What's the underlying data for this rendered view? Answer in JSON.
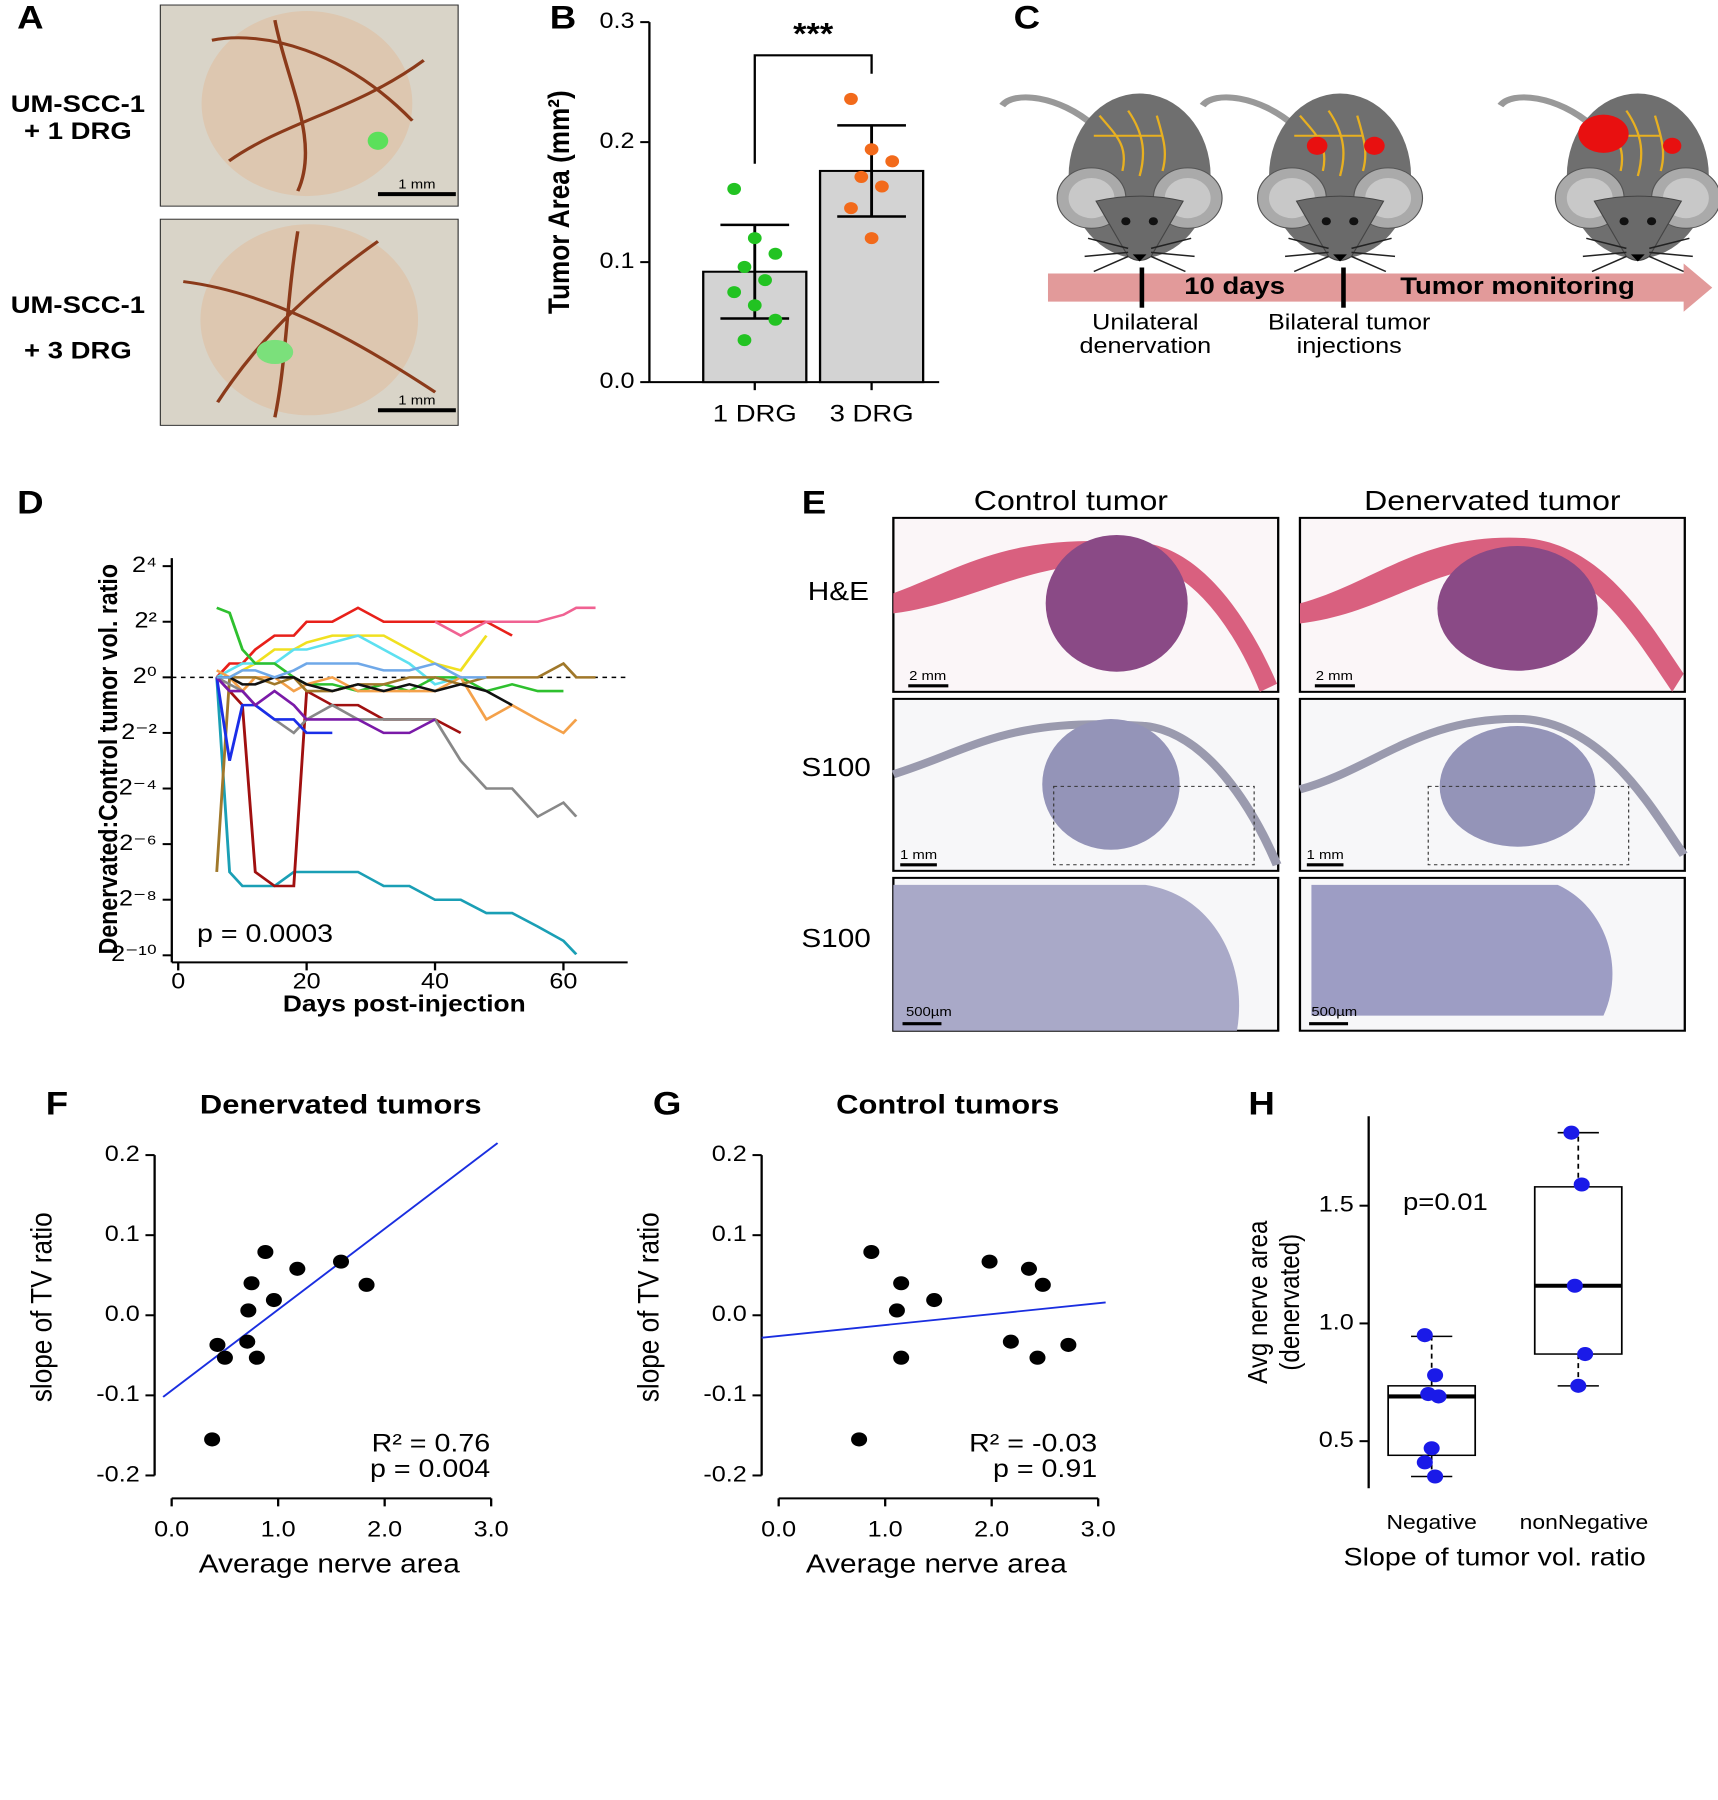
{
  "panel_a": {
    "letter": "A",
    "rows": [
      [
        "UM-SCC-1",
        "+ 1 DRG"
      ],
      [
        "UM-SCC-1",
        "+ 3 DRG"
      ]
    ],
    "scale_bars": [
      "1 mm",
      "1 mm"
    ]
  },
  "panel_c": {
    "letter": "C",
    "timeline": [
      "10 days",
      "Tumor monitoring"
    ],
    "events": [
      [
        "Unilateral",
        "denervation"
      ],
      [
        "Bilateral tumor",
        "injections"
      ]
    ]
  },
  "panel_e": {
    "letter": "E",
    "columns": [
      "Control tumor",
      "Denervated tumor"
    ],
    "rows": [
      "H&E",
      "S100",
      "S100"
    ],
    "scale_bars": [
      [
        "2 mm",
        "2 mm"
      ],
      [
        "1 mm",
        "1 mm"
      ],
      [
        "500µm",
        "500µm"
      ]
    ]
  },
  "chart_data": [
    {
      "type": "bar",
      "panel": "B",
      "ylabel": "Tumor Area (mm²)",
      "categories": [
        "1 DRG",
        "3 DRG"
      ],
      "values": [
        0.092,
        0.176
      ],
      "errors": [
        0.039,
        0.038
      ],
      "color": "#d3d3d3",
      "points": [
        [
          0.161,
          0.12,
          0.107,
          0.096,
          0.085,
          0.075,
          0.064,
          0.052,
          0.035
        ],
        [
          0.236,
          0.194,
          0.184,
          0.171,
          0.163,
          0.145,
          0.12
        ]
      ],
      "point_colors": [
        "#22c322",
        "#f26a1b"
      ],
      "annotation": "***",
      "ylim": [
        0,
        0.3
      ],
      "yticks": [
        {
          "value": 0,
          "label": "0.0"
        },
        0.1,
        0.2,
        0.3
      ]
    },
    {
      "type": "line",
      "panel": "D",
      "xlabel": "Days post-injection",
      "ylabel": "Denervated:Control tumor vol. ratio",
      "annotation": "p = 0.0003",
      "log_base": 2,
      "reference_line": 1,
      "x": [
        6,
        8,
        10,
        12,
        15,
        18,
        20,
        24,
        28,
        32,
        36,
        40,
        44,
        48,
        52,
        56,
        60,
        62,
        65
      ],
      "series": [
        {
          "color": "#1a9fb5",
          "values": [
            1,
            0.0078,
            0.0055,
            0.0055,
            0.0055,
            0.0078,
            0.0078,
            0.0078,
            0.0078,
            0.0055,
            0.0055,
            0.0039,
            0.0039,
            0.0028,
            0.0028,
            0.002,
            0.0014,
            0.001,
            null
          ]
        },
        {
          "color": "#a01010",
          "values": [
            1,
            0.71,
            0.5,
            0.0078,
            0.0055,
            0.0055,
            0.71,
            0.5,
            0.5,
            0.35,
            0.35,
            0.35,
            0.25,
            null,
            null,
            null,
            null,
            null,
            null
          ]
        },
        {
          "color": "#e8201a",
          "values": [
            1,
            1.41,
            1.41,
            2,
            2.83,
            2.83,
            4,
            4,
            5.66,
            4,
            4,
            4,
            4,
            4,
            2.83,
            null,
            null,
            null,
            null
          ]
        },
        {
          "color": "#f06292",
          "values": [
            null,
            null,
            null,
            null,
            null,
            null,
            null,
            null,
            null,
            null,
            null,
            4,
            2.83,
            4,
            4,
            4,
            4.76,
            5.66,
            5.66
          ]
        },
        {
          "color": "#f0e020",
          "values": [
            1,
            1,
            1.19,
            1.41,
            2,
            2,
            2.38,
            2.83,
            2.83,
            2.83,
            2,
            1.41,
            1.19,
            2.83,
            null,
            null,
            null,
            null,
            null
          ]
        },
        {
          "color": "#5de0f0",
          "values": [
            1,
            1.19,
            1.41,
            1.41,
            1.41,
            2,
            2,
            2.38,
            2.83,
            2,
            1.41,
            0.84,
            1,
            null,
            null,
            null,
            null,
            null,
            null
          ]
        },
        {
          "color": "#2ec02e",
          "values": [
            5.66,
            5,
            2,
            1.41,
            1.41,
            1,
            0.84,
            0.84,
            0.71,
            0.84,
            0.71,
            1,
            1,
            0.71,
            0.84,
            0.71,
            0.71,
            null,
            null
          ]
        },
        {
          "color": "#f4a14a",
          "values": [
            1.19,
            1,
            0.71,
            1,
            1,
            0.71,
            0.84,
            1,
            0.71,
            0.71,
            0.71,
            0.71,
            1,
            0.35,
            0.5,
            0.35,
            0.25,
            0.35,
            null
          ]
        },
        {
          "color": "#a0782a",
          "values": [
            0.0078,
            1,
            1,
            1,
            0.84,
            1,
            0.71,
            0.71,
            0.84,
            0.84,
            1,
            1,
            0.84,
            1,
            1,
            1,
            1.41,
            1,
            1
          ]
        },
        {
          "color": "#888888",
          "values": [
            1,
            0.84,
            0.71,
            0.5,
            0.35,
            0.25,
            0.35,
            0.5,
            0.35,
            0.35,
            0.35,
            0.35,
            0.125,
            0.0625,
            0.0625,
            0.031,
            0.044,
            0.031,
            null
          ]
        },
        {
          "color": "#1a2ee8",
          "values": [
            1,
            0.125,
            0.5,
            0.5,
            0.35,
            0.35,
            0.25,
            0.25,
            null,
            null,
            null,
            null,
            null,
            null,
            null,
            null,
            null,
            null,
            null
          ]
        },
        {
          "color": "#7a1aa8",
          "values": [
            1,
            0.71,
            0.71,
            0.5,
            0.71,
            0.5,
            0.35,
            0.35,
            0.35,
            0.25,
            0.25,
            0.35,
            null,
            null,
            null,
            null,
            null,
            null,
            null
          ]
        },
        {
          "color": "#111111",
          "values": [
            1,
            1,
            0.84,
            0.84,
            1,
            1,
            0.84,
            0.71,
            0.84,
            0.71,
            0.84,
            0.71,
            0.84,
            0.71,
            0.5,
            null,
            null,
            null,
            null
          ]
        },
        {
          "color": "#6fa8e8",
          "values": [
            1,
            1,
            1.19,
            1.19,
            1,
            1.19,
            1.41,
            1.41,
            1.41,
            1.19,
            1.19,
            1.41,
            1,
            1,
            null,
            null,
            null,
            null,
            null
          ]
        }
      ],
      "xlim": [
        -1,
        70
      ],
      "xticks": [
        0,
        20,
        40,
        60
      ],
      "ylim": [
        0.0009765625,
        16
      ],
      "yticks": [
        {
          "value": 16,
          "label": "2⁴"
        },
        {
          "value": 4,
          "label": "2²"
        },
        {
          "value": 1,
          "label": "2⁰"
        },
        {
          "value": 0.25,
          "label": "2⁻²"
        },
        {
          "value": 0.0625,
          "label": "2⁻⁴"
        },
        {
          "value": 0.015625,
          "label": "2⁻⁶"
        },
        {
          "value": 0.00390625,
          "label": "2⁻⁸"
        },
        {
          "value": 0.0009765625,
          "label": "2⁻¹⁰"
        }
      ]
    },
    {
      "type": "scatter",
      "panel": "F",
      "title": "Denervated tumors",
      "xlabel": "Average nerve area",
      "ylabel": "slope of TV ratio",
      "annotations": [
        "R² = 0.76",
        "p = 0.004"
      ],
      "color": "#000000",
      "x": [
        0.38,
        0.43,
        0.5,
        0.71,
        0.72,
        0.75,
        0.8,
        0.88,
        0.96,
        1.18,
        1.59,
        1.83
      ],
      "values": [
        -0.155,
        -0.037,
        -0.053,
        -0.033,
        0.006,
        0.04,
        -0.053,
        0.079,
        0.019,
        0.058,
        0.067,
        0.038
      ],
      "fit_line": {
        "color": "#1a2ee0",
        "x": [
          -0.08,
          3.06
        ],
        "y": [
          -0.102,
          0.215
        ]
      },
      "xlim": [
        -0.16,
        3.12
      ],
      "xticks": [
        {
          "value": 0,
          "label": "0.0"
        },
        {
          "value": 1,
          "label": "1.0"
        },
        {
          "value": 2,
          "label": "2.0"
        },
        {
          "value": 3,
          "label": "3.0"
        }
      ],
      "ylim": [
        -0.216,
        0.236
      ],
      "yticks": [
        -0.2,
        -0.1,
        {
          "value": 0,
          "label": "0.0"
        },
        0.1,
        0.2
      ]
    },
    {
      "type": "scatter",
      "panel": "G",
      "title": "Control tumors",
      "xlabel": "Average nerve area",
      "ylabel": "slope of TV ratio",
      "annotations": [
        "R² = -0.03",
        "p = 0.91"
      ],
      "color": "#000000",
      "x": [
        0.755,
        0.87,
        1.11,
        1.15,
        1.15,
        1.46,
        1.98,
        2.18,
        2.35,
        2.43,
        2.48,
        2.72
      ],
      "values": [
        -0.155,
        0.079,
        0.006,
        0.04,
        -0.053,
        0.019,
        0.067,
        -0.033,
        0.058,
        -0.053,
        0.038,
        -0.037
      ],
      "fit_line": {
        "color": "#1a2ee0",
        "x": [
          -0.16,
          3.07
        ],
        "y": [
          -0.028,
          0.016
        ]
      },
      "xlim": [
        -0.16,
        3.12
      ],
      "xticks": [
        {
          "value": 0,
          "label": "0.0"
        },
        {
          "value": 1,
          "label": "1.0"
        },
        {
          "value": 2,
          "label": "2.0"
        },
        {
          "value": 3,
          "label": "3.0"
        }
      ],
      "ylim": [
        -0.216,
        0.236
      ],
      "yticks": [
        -0.2,
        -0.1,
        {
          "value": 0,
          "label": "0.0"
        },
        0.1,
        0.2
      ]
    },
    {
      "type": "box",
      "panel": "H",
      "xlabel": "Slope of tumor vol. ratio",
      "ylabel": [
        "Avg nerve area",
        "(denervated)"
      ],
      "annotation": "p=0.01",
      "categories": [
        "Negative",
        "nonNegative"
      ],
      "point_color": "#1a1ae8",
      "boxes": [
        {
          "whisker_low": 0.35,
          "q1": 0.44,
          "median": 0.69,
          "q3": 0.735,
          "whisker_high": 0.945,
          "points": [
            0.95,
            0.78,
            0.7,
            0.69,
            0.47,
            0.41,
            0.35
          ]
        },
        {
          "whisker_low": 0.735,
          "q1": 0.87,
          "median": 1.16,
          "q3": 1.58,
          "whisker_high": 1.81,
          "points": [
            1.81,
            1.59,
            1.16,
            0.87,
            0.735
          ]
        }
      ],
      "ylim": [
        0.3,
        1.88
      ],
      "yticks": [
        0.5,
        {
          "value": 1,
          "label": "1.0"
        },
        1.5
      ]
    }
  ]
}
